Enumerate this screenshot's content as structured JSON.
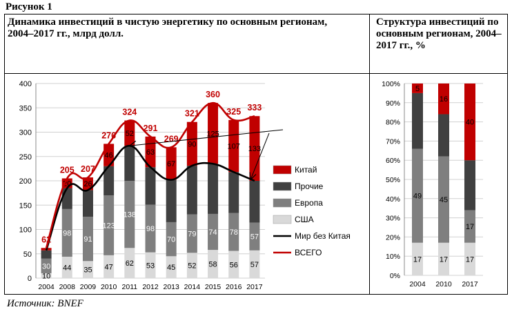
{
  "figure_label": "Рисунок 1",
  "source": "Источник: BNEF",
  "chart_data": [
    {
      "type": "bar",
      "stacked": true,
      "title": "Динамика инвестиций в чистую энергетику по основным регионам, 2004–2017 гг., млрд долл.",
      "categories": [
        "2004",
        "2008",
        "2009",
        "2010",
        "2011",
        "2012",
        "2013",
        "2014",
        "2015",
        "2016",
        "2017"
      ],
      "ylim": [
        0,
        400
      ],
      "yticks": [
        0,
        50,
        100,
        150,
        200,
        250,
        300,
        350,
        400
      ],
      "grid": true,
      "legend_position": "right",
      "series": [
        {
          "name": "США",
          "kind": "bar",
          "color": "#d9d9d9",
          "values": [
            10,
            44,
            35,
            47,
            62,
            53,
            45,
            52,
            58,
            56,
            57
          ]
        },
        {
          "name": "Европа",
          "kind": "bar",
          "color": "#7f7f7f",
          "values": [
            30,
            98,
            91,
            123,
            138,
            98,
            70,
            79,
            74,
            78,
            57
          ]
        },
        {
          "name": "Прочие",
          "kind": "bar",
          "color": "#404040",
          "values": [
            17,
            43,
            55,
            60,
            72,
            77,
            87,
            100,
            103,
            84,
            86
          ]
        },
        {
          "name": "Китай",
          "kind": "bar",
          "color": "#c00000",
          "values": [
            5,
            20,
            26,
            46,
            52,
            63,
            67,
            90,
            125,
            107,
            133
          ]
        },
        {
          "name": "Мир без Китая",
          "kind": "line",
          "color": "#000000",
          "values": [
            57,
            185,
            181,
            230,
            272,
            228,
            202,
            231,
            235,
            218,
            200
          ]
        },
        {
          "name": "ВСЕГО",
          "kind": "line",
          "color": "#c00000",
          "values": [
            62,
            205,
            207,
            276,
            324,
            291,
            269,
            321,
            360,
            325,
            333
          ]
        }
      ],
      "bar_labels": [
        [
          "10",
          "44",
          "35",
          "47",
          "62",
          "53",
          "45",
          "52",
          "58",
          "56",
          "57"
        ],
        [
          "30",
          "98",
          "91",
          "123",
          "138",
          "98",
          "70",
          "79",
          "74",
          "78",
          "57"
        ],
        [
          "",
          "",
          "",
          "",
          "",
          "",
          "",
          "",
          "",
          "",
          ""
        ],
        [
          "",
          "20",
          "26",
          "46",
          "52",
          "63",
          "67",
          "90",
          "125",
          "107",
          "133"
        ]
      ],
      "total_labels": [
        "62",
        "205",
        "207",
        "276",
        "324",
        "291",
        "269",
        "321",
        "360",
        "325",
        "333"
      ]
    },
    {
      "type": "bar",
      "stacked": true,
      "percent": true,
      "title": "Структура инвестиций по основным регионам, 2004–2017 гг., %",
      "categories": [
        "2004",
        "2010",
        "2017"
      ],
      "ylim": [
        0,
        100
      ],
      "yticks": [
        "0%",
        "10%",
        "20%",
        "30%",
        "40%",
        "50%",
        "60%",
        "70%",
        "80%",
        "90%",
        "100%"
      ],
      "series": [
        {
          "name": "США",
          "color": "#d9d9d9",
          "values": [
            17,
            17,
            17
          ]
        },
        {
          "name": "Европа",
          "color": "#7f7f7f",
          "values": [
            49,
            45,
            17
          ]
        },
        {
          "name": "Прочие",
          "color": "#404040",
          "values": [
            29,
            22,
            26
          ]
        },
        {
          "name": "Китай",
          "color": "#c00000",
          "values": [
            5,
            16,
            40
          ]
        }
      ],
      "labels": {
        "США": [
          "17",
          "17",
          "17"
        ],
        "Европа": [
          "49",
          "45",
          "17"
        ],
        "Китай": [
          "5",
          "16",
          "40"
        ]
      }
    }
  ]
}
